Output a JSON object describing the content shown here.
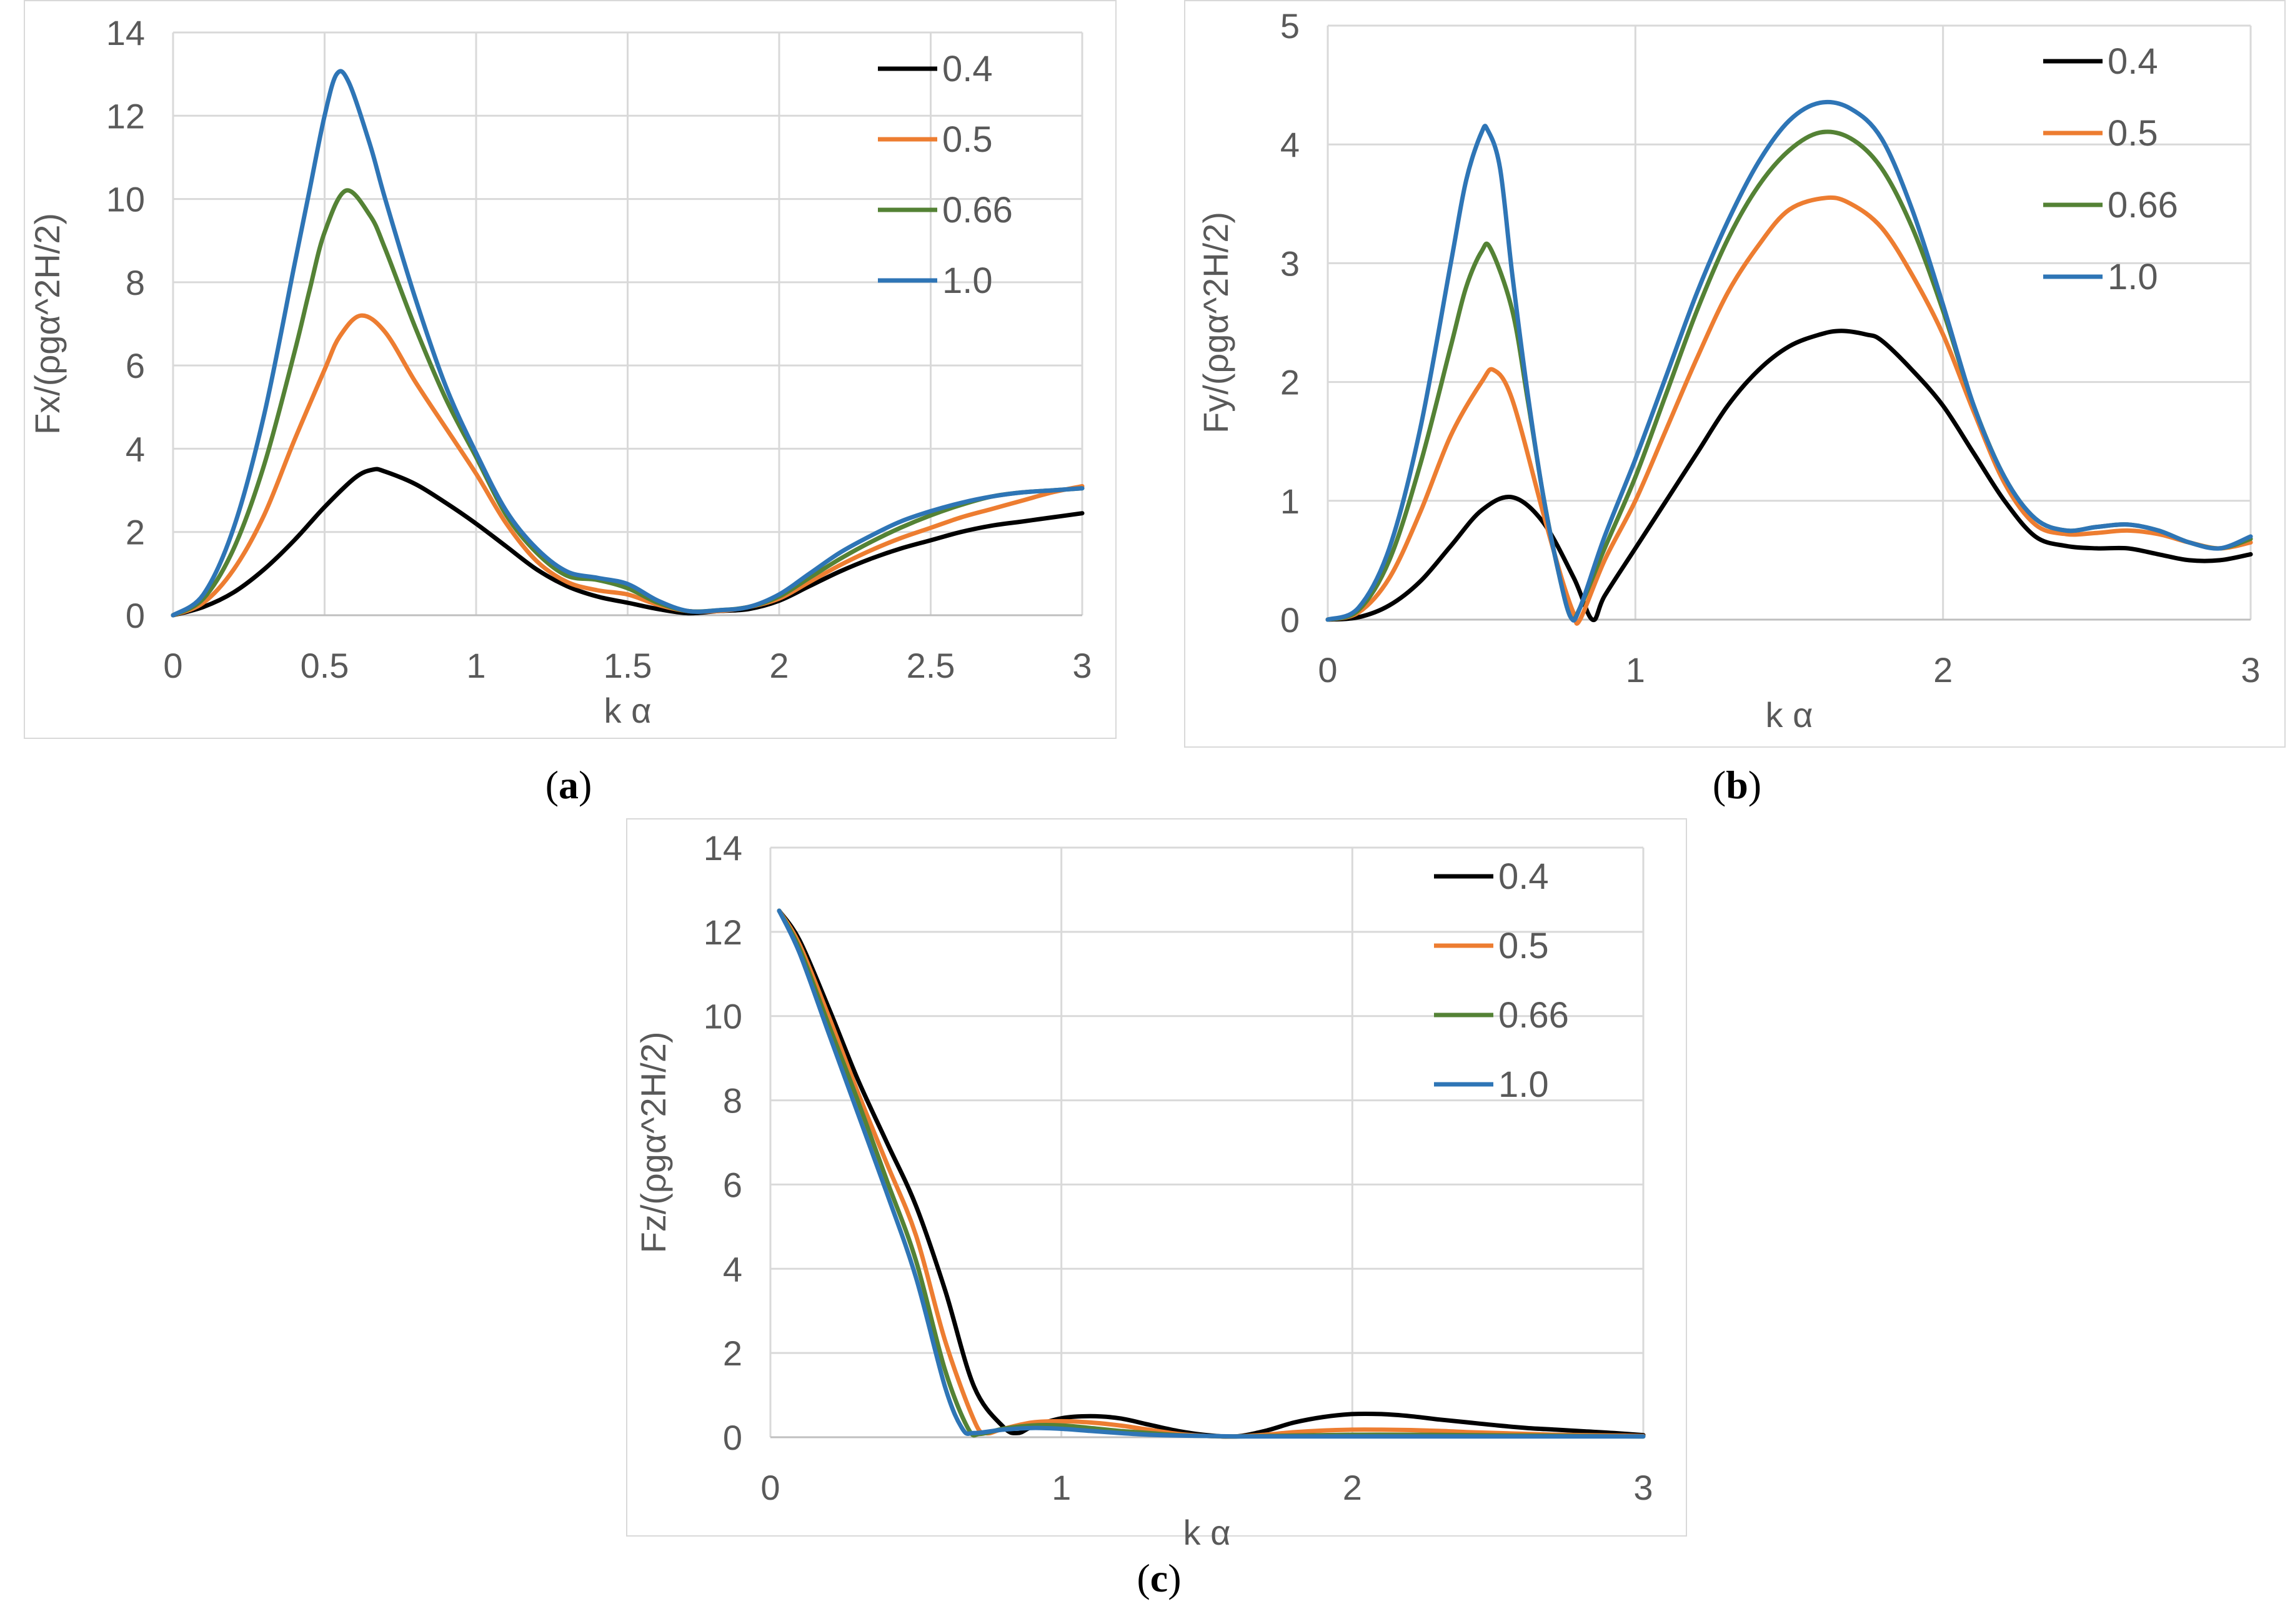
{
  "chart_data": [
    {
      "panel": "a",
      "type": "line",
      "caption_letter": "a",
      "xlabel": "k α",
      "ylabel": "Fx/(ρgα^2H/2)",
      "xlim": [
        0,
        3
      ],
      "ylim": [
        0,
        14
      ],
      "xticks": [
        0,
        0.5,
        1,
        1.5,
        2,
        2.5,
        3
      ],
      "xtick_labels": [
        "0",
        "0.5",
        "1",
        "1.5",
        "2",
        "2.5",
        "3"
      ],
      "yticks": [
        0,
        2,
        4,
        6,
        8,
        10,
        12,
        14
      ],
      "ytick_labels": [
        "0",
        "2",
        "4",
        "6",
        "8",
        "10",
        "12",
        "14"
      ],
      "grid": true,
      "legend_position": "top-right",
      "series": [
        {
          "name": "0.4",
          "color": "#000000",
          "x": [
            0,
            0.1,
            0.2,
            0.3,
            0.4,
            0.5,
            0.6,
            0.66,
            0.7,
            0.8,
            0.9,
            1.0,
            1.1,
            1.2,
            1.3,
            1.4,
            1.5,
            1.6,
            1.7,
            1.8,
            1.9,
            2.0,
            2.1,
            2.2,
            2.3,
            2.4,
            2.5,
            2.6,
            2.7,
            2.8,
            2.9,
            3.0
          ],
          "y": [
            0,
            0.2,
            0.55,
            1.1,
            1.8,
            2.6,
            3.3,
            3.5,
            3.45,
            3.15,
            2.7,
            2.2,
            1.65,
            1.1,
            0.7,
            0.45,
            0.3,
            0.15,
            0.05,
            0.1,
            0.15,
            0.35,
            0.7,
            1.05,
            1.35,
            1.6,
            1.8,
            2.0,
            2.15,
            2.25,
            2.35,
            2.45
          ]
        },
        {
          "name": "0.5",
          "color": "#ed7d31",
          "x": [
            0,
            0.1,
            0.2,
            0.3,
            0.4,
            0.5,
            0.55,
            0.62,
            0.7,
            0.8,
            0.9,
            1.0,
            1.1,
            1.2,
            1.3,
            1.4,
            1.5,
            1.6,
            1.7,
            1.8,
            1.9,
            2.0,
            2.1,
            2.2,
            2.3,
            2.4,
            2.5,
            2.6,
            2.7,
            2.8,
            2.9,
            3.0
          ],
          "y": [
            0,
            0.3,
            1.1,
            2.4,
            4.2,
            5.9,
            6.7,
            7.2,
            6.8,
            5.6,
            4.5,
            3.4,
            2.2,
            1.3,
            0.8,
            0.6,
            0.5,
            0.25,
            0.1,
            0.1,
            0.2,
            0.4,
            0.8,
            1.2,
            1.55,
            1.85,
            2.1,
            2.35,
            2.55,
            2.75,
            2.95,
            3.1
          ]
        },
        {
          "name": "0.66",
          "color": "#548235",
          "x": [
            0,
            0.1,
            0.2,
            0.3,
            0.4,
            0.45,
            0.5,
            0.57,
            0.65,
            0.7,
            0.8,
            0.9,
            1.0,
            1.1,
            1.2,
            1.3,
            1.4,
            1.5,
            1.6,
            1.7,
            1.8,
            1.9,
            2.0,
            2.1,
            2.2,
            2.3,
            2.4,
            2.5,
            2.6,
            2.7,
            2.8,
            2.9,
            3.0
          ],
          "y": [
            0,
            0.4,
            1.6,
            3.6,
            6.3,
            7.8,
            9.2,
            10.2,
            9.6,
            8.8,
            6.9,
            5.2,
            3.8,
            2.4,
            1.5,
            0.95,
            0.85,
            0.65,
            0.3,
            0.1,
            0.12,
            0.2,
            0.45,
            0.9,
            1.35,
            1.75,
            2.1,
            2.4,
            2.65,
            2.85,
            2.95,
            3.0,
            3.05
          ]
        },
        {
          "name": "1.0",
          "color": "#2e75b6",
          "x": [
            0,
            0.1,
            0.2,
            0.3,
            0.4,
            0.45,
            0.5,
            0.54,
            0.58,
            0.65,
            0.7,
            0.8,
            0.9,
            1.0,
            1.1,
            1.2,
            1.3,
            1.4,
            1.5,
            1.6,
            1.7,
            1.8,
            1.9,
            2.0,
            2.1,
            2.2,
            2.3,
            2.4,
            2.5,
            2.6,
            2.7,
            2.8,
            2.9,
            3.0
          ],
          "y": [
            0,
            0.5,
            2.1,
            4.8,
            8.4,
            10.2,
            12.0,
            13.0,
            12.8,
            11.3,
            10.0,
            7.6,
            5.5,
            3.9,
            2.5,
            1.6,
            1.05,
            0.9,
            0.75,
            0.35,
            0.1,
            0.12,
            0.2,
            0.5,
            1.0,
            1.5,
            1.9,
            2.25,
            2.5,
            2.7,
            2.85,
            2.95,
            3.0,
            3.05
          ]
        }
      ]
    },
    {
      "panel": "b",
      "type": "line",
      "caption_letter": "b",
      "xlabel": "k α",
      "ylabel": "Fy/(ρgα^2H/2)",
      "xlim": [
        0,
        3
      ],
      "ylim": [
        0,
        5
      ],
      "xticks": [
        0,
        1,
        2,
        3
      ],
      "xtick_labels": [
        "0",
        "1",
        "2",
        "3"
      ],
      "yticks": [
        0,
        1,
        2,
        3,
        4,
        5
      ],
      "ytick_labels": [
        "0",
        "1",
        "2",
        "3",
        "4",
        "5"
      ],
      "grid": true,
      "legend_position": "top-right",
      "series": [
        {
          "name": "0.4",
          "color": "#000000",
          "x": [
            0,
            0.1,
            0.2,
            0.3,
            0.4,
            0.5,
            0.6,
            0.7,
            0.8,
            0.86,
            0.9,
            1.0,
            1.1,
            1.2,
            1.3,
            1.4,
            1.5,
            1.6,
            1.67,
            1.75,
            1.8,
            1.9,
            2.0,
            2.1,
            2.2,
            2.3,
            2.4,
            2.5,
            2.6,
            2.7,
            2.8,
            2.9,
            3.0
          ],
          "y": [
            0,
            0.02,
            0.12,
            0.32,
            0.62,
            0.92,
            1.03,
            0.82,
            0.35,
            0.0,
            0.2,
            0.6,
            1.0,
            1.4,
            1.8,
            2.1,
            2.3,
            2.4,
            2.43,
            2.4,
            2.35,
            2.1,
            1.8,
            1.4,
            1.0,
            0.7,
            0.62,
            0.6,
            0.6,
            0.55,
            0.5,
            0.5,
            0.55
          ]
        },
        {
          "name": "0.5",
          "color": "#ed7d31",
          "x": [
            0,
            0.1,
            0.2,
            0.3,
            0.4,
            0.5,
            0.54,
            0.6,
            0.7,
            0.76,
            0.8,
            0.82,
            0.9,
            1.0,
            1.1,
            1.2,
            1.3,
            1.4,
            1.5,
            1.62,
            1.7,
            1.8,
            1.9,
            2.0,
            2.1,
            2.2,
            2.3,
            2.4,
            2.5,
            2.6,
            2.7,
            2.8,
            2.9,
            3.0
          ],
          "y": [
            0,
            0.06,
            0.35,
            0.9,
            1.55,
            2.0,
            2.1,
            1.85,
            0.9,
            0.35,
            0.05,
            0.0,
            0.5,
            1.0,
            1.6,
            2.2,
            2.75,
            3.15,
            3.45,
            3.55,
            3.5,
            3.3,
            2.9,
            2.4,
            1.75,
            1.15,
            0.8,
            0.72,
            0.73,
            0.75,
            0.72,
            0.65,
            0.6,
            0.65
          ]
        },
        {
          "name": "0.66",
          "color": "#548235",
          "x": [
            0,
            0.1,
            0.2,
            0.3,
            0.4,
            0.45,
            0.5,
            0.53,
            0.6,
            0.65,
            0.7,
            0.75,
            0.79,
            0.82,
            0.9,
            1.0,
            1.1,
            1.2,
            1.3,
            1.4,
            1.5,
            1.6,
            1.7,
            1.8,
            1.9,
            2.0,
            2.1,
            2.2,
            2.3,
            2.4,
            2.5,
            2.6,
            2.7,
            2.8,
            2.9,
            3.0
          ],
          "y": [
            0,
            0.08,
            0.5,
            1.3,
            2.3,
            2.8,
            3.1,
            3.12,
            2.6,
            1.85,
            1.05,
            0.4,
            0.02,
            0.1,
            0.6,
            1.2,
            1.9,
            2.6,
            3.2,
            3.65,
            3.95,
            4.1,
            4.05,
            3.8,
            3.3,
            2.6,
            1.8,
            1.2,
            0.85,
            0.75,
            0.78,
            0.8,
            0.75,
            0.65,
            0.6,
            0.68
          ]
        },
        {
          "name": "1.0",
          "color": "#2e75b6",
          "x": [
            0,
            0.1,
            0.2,
            0.3,
            0.4,
            0.45,
            0.5,
            0.52,
            0.56,
            0.6,
            0.65,
            0.7,
            0.75,
            0.79,
            0.82,
            0.9,
            1.0,
            1.1,
            1.2,
            1.3,
            1.4,
            1.5,
            1.6,
            1.7,
            1.8,
            1.9,
            2.0,
            2.1,
            2.2,
            2.3,
            2.4,
            2.5,
            2.6,
            2.7,
            2.8,
            2.9,
            3.0
          ],
          "y": [
            0,
            0.1,
            0.6,
            1.6,
            3.0,
            3.7,
            4.1,
            4.12,
            3.8,
            2.9,
            1.9,
            1.05,
            0.4,
            0.02,
            0.1,
            0.7,
            1.35,
            2.05,
            2.75,
            3.35,
            3.85,
            4.2,
            4.35,
            4.3,
            4.05,
            3.45,
            2.65,
            1.8,
            1.2,
            0.85,
            0.75,
            0.78,
            0.8,
            0.75,
            0.65,
            0.6,
            0.7
          ]
        }
      ]
    },
    {
      "panel": "c",
      "type": "line",
      "caption_letter": "c",
      "xlabel": "k α",
      "ylabel": "Fz/(ρgα^2H/2)",
      "xlim": [
        0,
        3
      ],
      "ylim": [
        0,
        14
      ],
      "xticks": [
        0,
        1,
        2,
        3
      ],
      "xtick_labels": [
        "0",
        "1",
        "2",
        "3"
      ],
      "yticks": [
        0,
        2,
        4,
        6,
        8,
        10,
        12,
        14
      ],
      "ytick_labels": [
        "0",
        "2",
        "4",
        "6",
        "8",
        "10",
        "12",
        "14"
      ],
      "grid": true,
      "legend_position": "top-right",
      "series": [
        {
          "name": "0.4",
          "color": "#000000",
          "x": [
            0.03,
            0.1,
            0.2,
            0.3,
            0.4,
            0.5,
            0.6,
            0.7,
            0.8,
            0.85,
            0.9,
            1.0,
            1.1,
            1.2,
            1.3,
            1.4,
            1.5,
            1.6,
            1.7,
            1.8,
            1.9,
            2.0,
            2.1,
            2.2,
            2.3,
            2.4,
            2.5,
            2.6,
            2.7,
            2.8,
            2.9,
            3.0
          ],
          "y": [
            12.5,
            11.8,
            10.2,
            8.5,
            7.0,
            5.5,
            3.5,
            1.2,
            0.25,
            0.1,
            0.25,
            0.45,
            0.5,
            0.45,
            0.3,
            0.15,
            0.05,
            0.02,
            0.15,
            0.35,
            0.48,
            0.55,
            0.55,
            0.5,
            0.42,
            0.35,
            0.28,
            0.22,
            0.18,
            0.14,
            0.1,
            0.05
          ]
        },
        {
          "name": "0.5",
          "color": "#ed7d31",
          "x": [
            0.03,
            0.1,
            0.2,
            0.3,
            0.4,
            0.5,
            0.6,
            0.7,
            0.74,
            0.8,
            0.9,
            1.0,
            1.1,
            1.2,
            1.3,
            1.4,
            1.5,
            1.6,
            1.7,
            1.8,
            1.9,
            2.0,
            2.1,
            2.2,
            2.3,
            2.4,
            2.5,
            2.6,
            2.7,
            2.8,
            2.9,
            3.0
          ],
          "y": [
            12.5,
            11.7,
            10.0,
            8.2,
            6.5,
            4.8,
            2.3,
            0.4,
            0.1,
            0.2,
            0.35,
            0.38,
            0.35,
            0.28,
            0.18,
            0.08,
            0.03,
            0.02,
            0.06,
            0.12,
            0.16,
            0.18,
            0.18,
            0.17,
            0.15,
            0.12,
            0.1,
            0.08,
            0.06,
            0.05,
            0.04,
            0.03
          ]
        },
        {
          "name": "0.66",
          "color": "#548235",
          "x": [
            0.03,
            0.1,
            0.2,
            0.3,
            0.4,
            0.5,
            0.6,
            0.68,
            0.72,
            0.8,
            0.9,
            1.0,
            1.1,
            1.2,
            1.3,
            1.4,
            1.5,
            1.6,
            1.8,
            2.0,
            2.2,
            2.4,
            2.6,
            2.8,
            3.0
          ],
          "y": [
            12.5,
            11.6,
            9.8,
            8.0,
            6.1,
            4.2,
            1.6,
            0.2,
            0.08,
            0.2,
            0.28,
            0.28,
            0.22,
            0.15,
            0.1,
            0.05,
            0.03,
            0.02,
            0.04,
            0.06,
            0.06,
            0.05,
            0.04,
            0.03,
            0.02
          ]
        },
        {
          "name": "1.0",
          "color": "#2e75b6",
          "x": [
            0.03,
            0.1,
            0.2,
            0.3,
            0.4,
            0.5,
            0.6,
            0.66,
            0.7,
            0.8,
            0.9,
            1.0,
            1.1,
            1.2,
            1.3,
            1.4,
            1.5,
            1.6,
            1.8,
            2.0,
            2.2,
            2.4,
            2.6,
            2.8,
            3.0
          ],
          "y": [
            12.5,
            11.5,
            9.6,
            7.7,
            5.8,
            3.8,
            1.2,
            0.2,
            0.1,
            0.18,
            0.22,
            0.2,
            0.15,
            0.1,
            0.06,
            0.04,
            0.03,
            0.02,
            0.02,
            0.02,
            0.02,
            0.02,
            0.02,
            0.02,
            0.02
          ]
        }
      ]
    }
  ]
}
